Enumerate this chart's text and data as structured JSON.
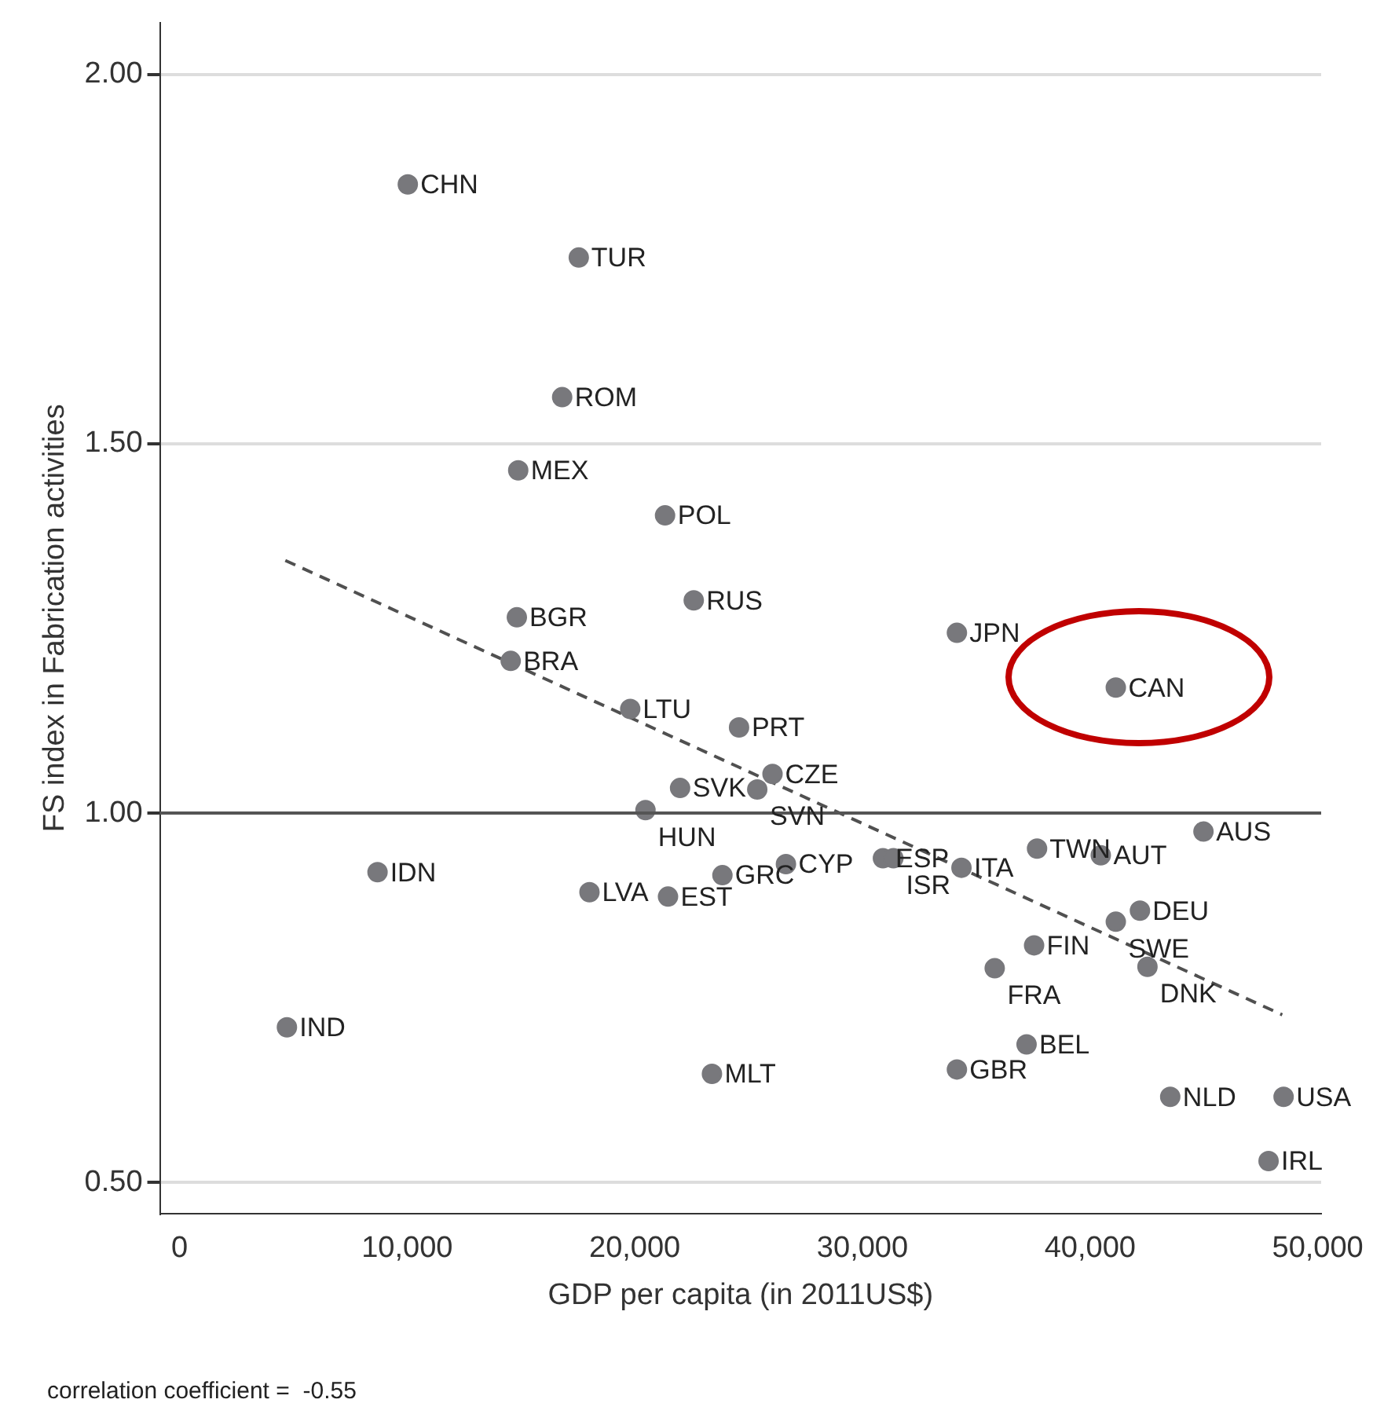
{
  "chart_data": {
    "type": "scatter",
    "xlabel": "GDP per capita (in 2011US$)",
    "ylabel": "FS index in Fabrication activities",
    "xlim": [
      -860,
      50150
    ],
    "ylim": [
      0.458,
      2.07
    ],
    "xticks": [
      0,
      {
        "value": 10000,
        "label": "10,000"
      },
      {
        "value": 20000,
        "label": "20,000"
      },
      {
        "value": 30000,
        "label": "30,000"
      },
      {
        "value": 40000,
        "label": "40,000"
      },
      {
        "value": 50000,
        "label": "50,000"
      }
    ],
    "yticks": [
      {
        "value": 0.5,
        "label": "0.50"
      },
      {
        "value": 1,
        "label": "1.00"
      },
      {
        "value": 1.5,
        "label": "1.50"
      },
      {
        "value": 2,
        "label": "2.00"
      }
    ],
    "grid": "y",
    "legend": false,
    "marker": "circle",
    "series": [
      {
        "color": "#78787c",
        "x": [
          10030,
          17540,
          16810,
          14880,
          21330,
          22590,
          14820,
          14550,
          34150,
          41130,
          19800,
          24580,
          26050,
          25380,
          21990,
          20470,
          44980,
          37670,
          40470,
          30900,
          31360,
          34350,
          26640,
          23850,
          8700,
          18010,
          21460,
          42190,
          41130,
          37540,
          35810,
          42520,
          37210,
          34150,
          23390,
          43520,
          48500,
          4720,
          47840
        ],
        "values": [
          1.851,
          1.752,
          1.563,
          1.464,
          1.403,
          1.288,
          1.265,
          1.206,
          1.244,
          1.17,
          1.141,
          1.116,
          1.053,
          1.032,
          1.034,
          1.004,
          0.975,
          0.952,
          0.943,
          0.939,
          0.939,
          0.926,
          0.931,
          0.916,
          0.92,
          0.893,
          0.887,
          0.868,
          0.853,
          0.821,
          0.79,
          0.792,
          0.687,
          0.653,
          0.647,
          0.616,
          0.616,
          0.71,
          0.529
        ]
      },
      {
        "type": "line",
        "color": "#505050",
        "line_style": "dashed",
        "marker": "none",
        "x": [
          4650,
          48440
        ],
        "values": [
          1.342,
          0.727
        ]
      }
    ],
    "ref_lines": [
      {
        "axis": "y",
        "value": 1,
        "color": "#555555",
        "line_style": "solid"
      }
    ],
    "annotations": [
      {
        "text": "CHN",
        "x": 10030,
        "y": 1.851
      },
      {
        "text": "TUR",
        "x": 17540,
        "y": 1.752
      },
      {
        "text": "ROM",
        "x": 16810,
        "y": 1.563
      },
      {
        "text": "MEX",
        "x": 14880,
        "y": 1.464
      },
      {
        "text": "POL",
        "x": 21330,
        "y": 1.403
      },
      {
        "text": "RUS",
        "x": 22590,
        "y": 1.288
      },
      {
        "text": "BGR",
        "x": 14820,
        "y": 1.265
      },
      {
        "text": "BRA",
        "x": 14550,
        "y": 1.206
      },
      {
        "text": "JPN",
        "x": 34150,
        "y": 1.244
      },
      {
        "text": "CAN",
        "x": 41130,
        "y": 1.17
      },
      {
        "text": "LTU",
        "x": 19800,
        "y": 1.141
      },
      {
        "text": "PRT",
        "x": 24580,
        "y": 1.116
      },
      {
        "text": "CZE",
        "x": 26050,
        "y": 1.053
      },
      {
        "text": "SVN",
        "x": 25380,
        "y": 1.032
      },
      {
        "text": "SVK",
        "x": 21990,
        "y": 1.034
      },
      {
        "text": "HUN",
        "x": 20470,
        "y": 1.004
      },
      {
        "text": "AUS",
        "x": 44980,
        "y": 0.975
      },
      {
        "text": "TWN",
        "x": 37670,
        "y": 0.952
      },
      {
        "text": "AUT",
        "x": 40470,
        "y": 0.943
      },
      {
        "text": "ESP",
        "x": 30900,
        "y": 0.939
      },
      {
        "text": "ISR",
        "x": 31360,
        "y": 0.939
      },
      {
        "text": "ITA",
        "x": 34350,
        "y": 0.926
      },
      {
        "text": "CYP",
        "x": 26640,
        "y": 0.931
      },
      {
        "text": "GRC",
        "x": 23850,
        "y": 0.916
      },
      {
        "text": "IDN",
        "x": 8700,
        "y": 0.92
      },
      {
        "text": "LVA",
        "x": 18010,
        "y": 0.893
      },
      {
        "text": "EST",
        "x": 21460,
        "y": 0.887
      },
      {
        "text": "DEU",
        "x": 42190,
        "y": 0.868
      },
      {
        "text": "SWE",
        "x": 41130,
        "y": 0.853
      },
      {
        "text": "FIN",
        "x": 37540,
        "y": 0.821
      },
      {
        "text": "FRA",
        "x": 35810,
        "y": 0.79
      },
      {
        "text": "DNK",
        "x": 42520,
        "y": 0.792
      },
      {
        "text": "BEL",
        "x": 37210,
        "y": 0.687
      },
      {
        "text": "GBR",
        "x": 34150,
        "y": 0.653
      },
      {
        "text": "MLT",
        "x": 23390,
        "y": 0.647
      },
      {
        "text": "NLD",
        "x": 43520,
        "y": 0.616
      },
      {
        "text": "USA",
        "x": 48500,
        "y": 0.616
      },
      {
        "text": "IND",
        "x": 4720,
        "y": 0.71
      },
      {
        "text": "IRL",
        "x": 47840,
        "y": 0.529
      },
      "correlation coefficient =  -0.55"
    ]
  }
}
